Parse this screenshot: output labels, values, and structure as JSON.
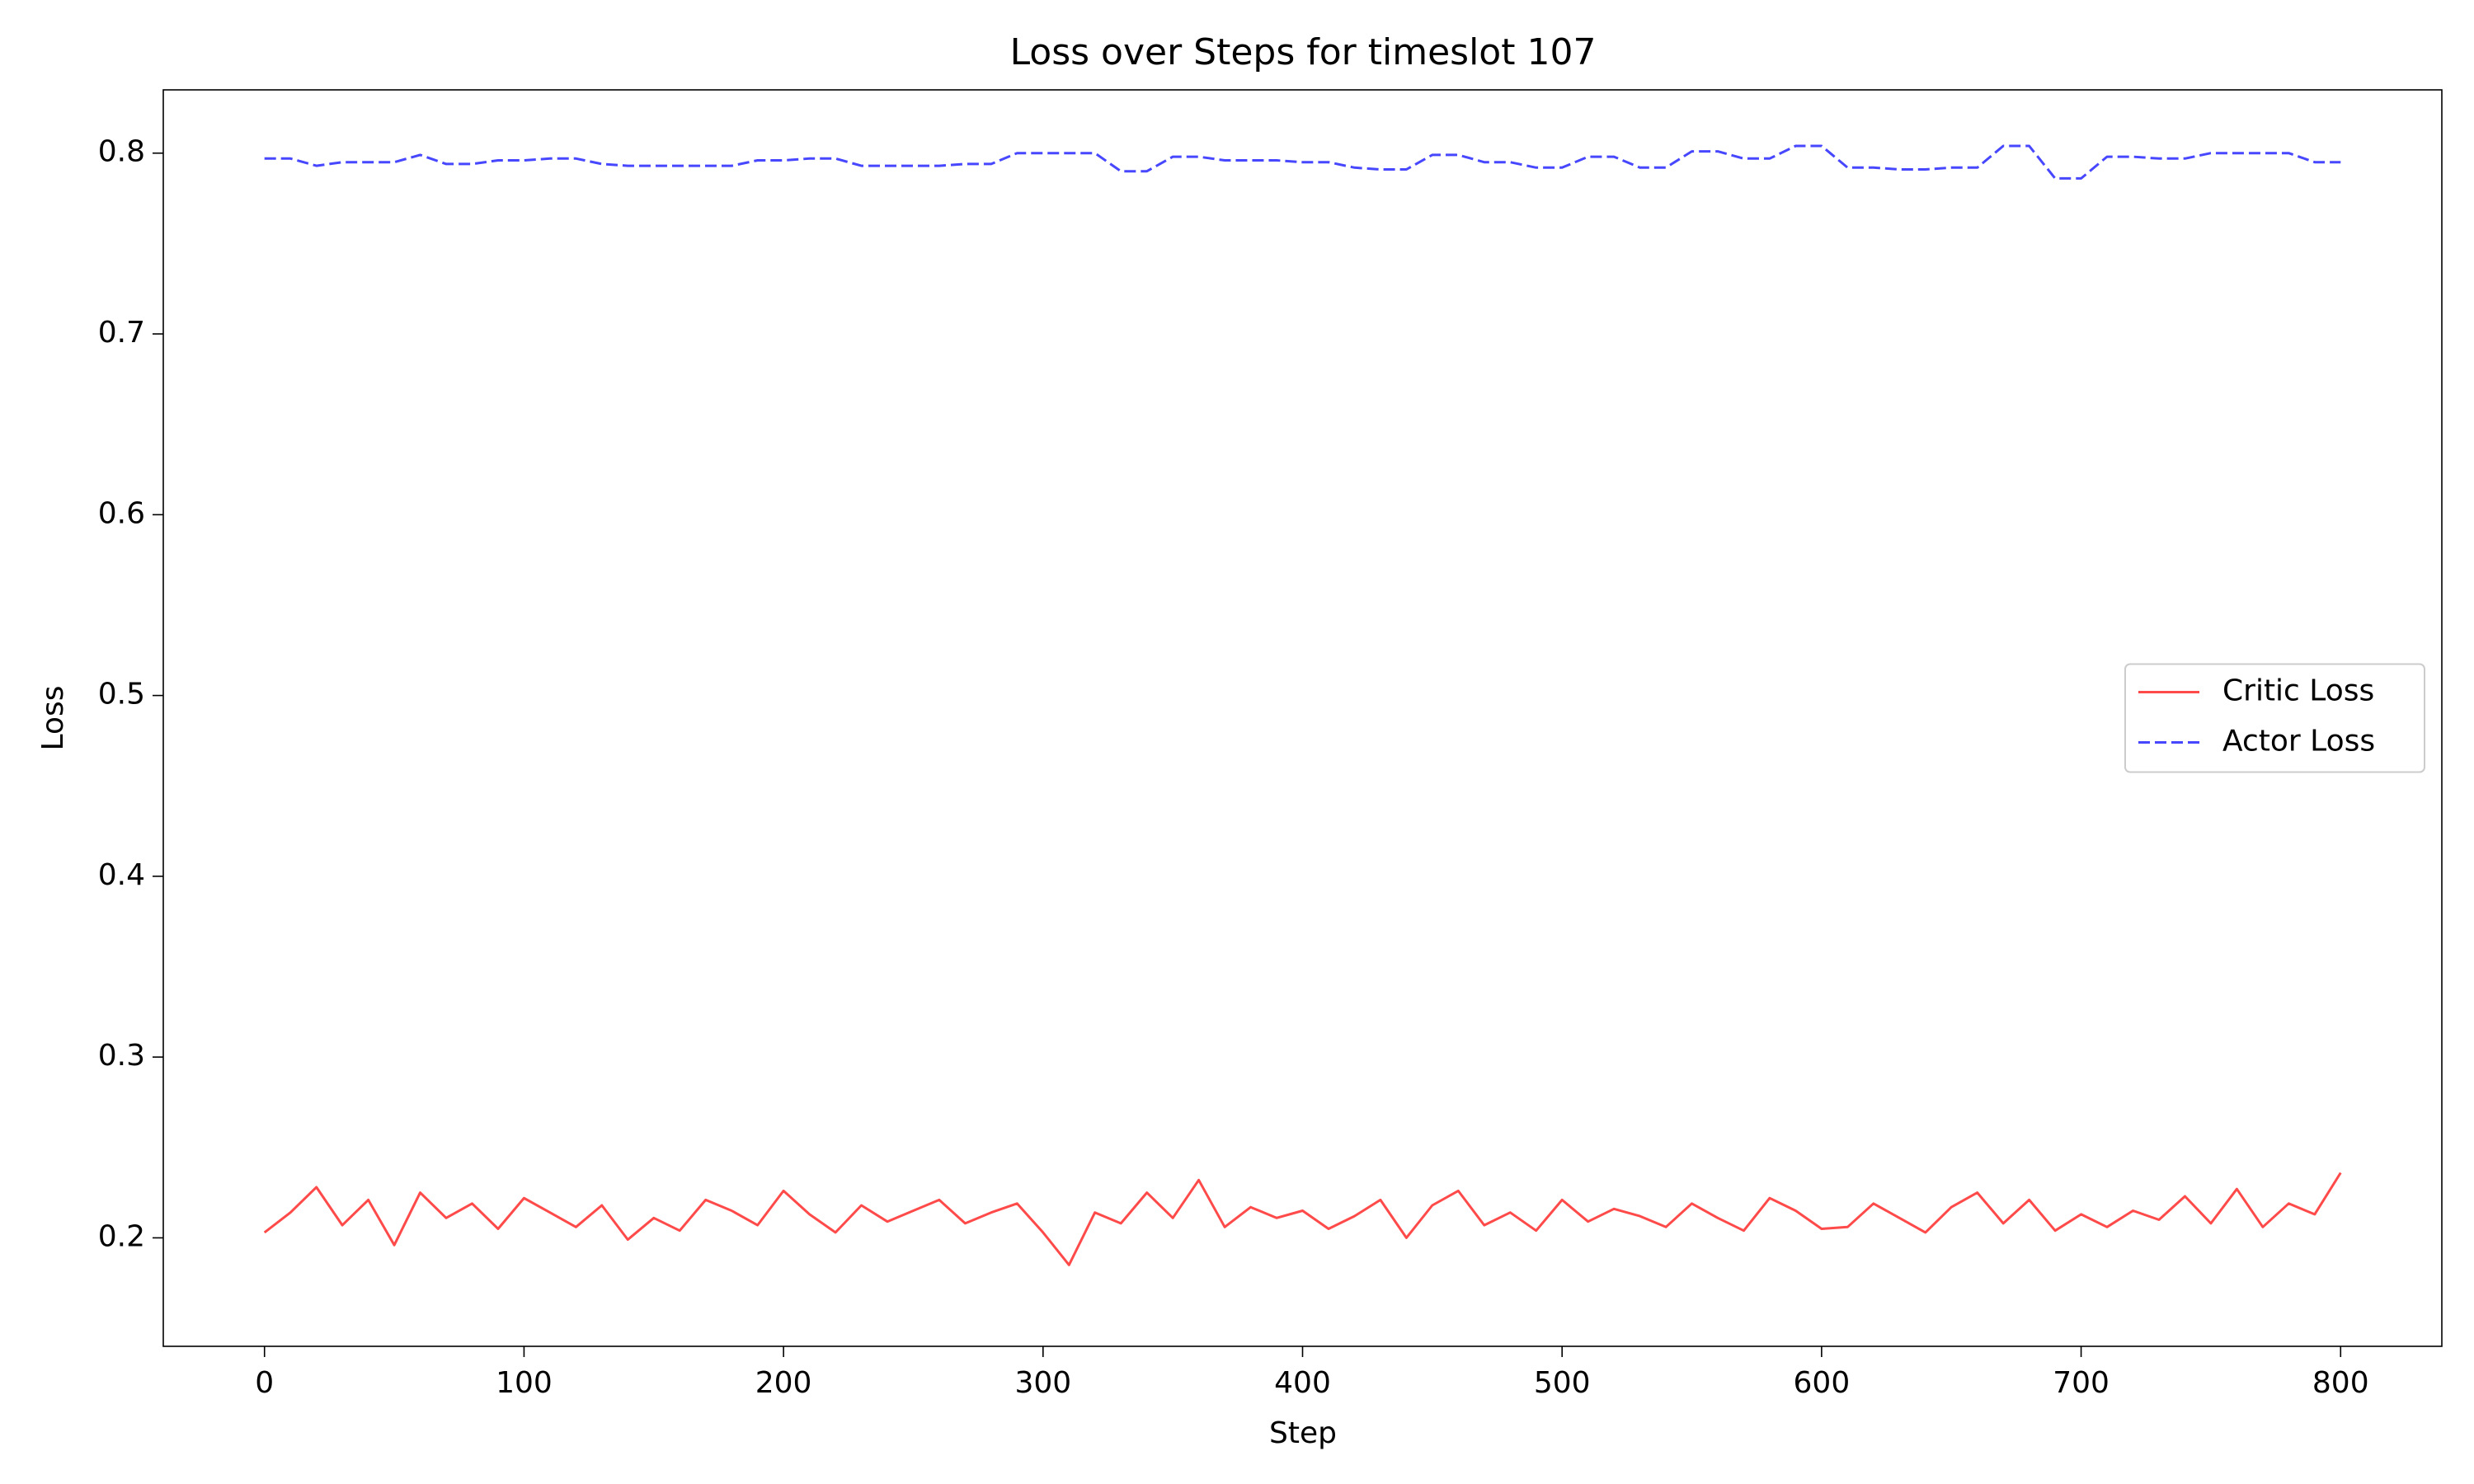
{
  "chart_data": {
    "type": "line",
    "title": "Loss over Steps for timeslot 107",
    "xlabel": "Step",
    "ylabel": "Loss",
    "x": [
      0,
      10,
      20,
      30,
      40,
      50,
      60,
      70,
      80,
      90,
      100,
      110,
      120,
      130,
      140,
      150,
      160,
      170,
      180,
      190,
      200,
      210,
      220,
      230,
      240,
      250,
      260,
      270,
      280,
      290,
      300,
      310,
      320,
      330,
      340,
      350,
      360,
      370,
      380,
      390,
      400,
      410,
      420,
      430,
      440,
      450,
      460,
      470,
      480,
      490,
      500,
      510,
      520,
      530,
      540,
      550,
      560,
      570,
      580,
      590,
      600,
      610,
      620,
      630,
      640,
      650,
      660,
      670,
      680,
      690,
      700,
      710,
      720,
      730,
      740,
      750,
      760,
      770,
      780,
      790,
      800
    ],
    "series": [
      {
        "name": "Critic Loss",
        "color": "#ff4a4a",
        "linestyle": "solid",
        "values": [
          0.203,
          0.214,
          0.228,
          0.207,
          0.221,
          0.196,
          0.225,
          0.211,
          0.219,
          0.205,
          0.222,
          0.214,
          0.206,
          0.218,
          0.199,
          0.211,
          0.204,
          0.221,
          0.215,
          0.207,
          0.226,
          0.213,
          0.203,
          0.218,
          0.209,
          0.215,
          0.221,
          0.208,
          0.214,
          0.219,
          0.203,
          0.185,
          0.214,
          0.208,
          0.225,
          0.211,
          0.232,
          0.206,
          0.217,
          0.211,
          0.215,
          0.205,
          0.212,
          0.221,
          0.2,
          0.218,
          0.226,
          0.207,
          0.214,
          0.204,
          0.221,
          0.209,
          0.216,
          0.212,
          0.206,
          0.219,
          0.211,
          0.204,
          0.222,
          0.215,
          0.205,
          0.206,
          0.219,
          0.211,
          0.203,
          0.217,
          0.225,
          0.208,
          0.221,
          0.204,
          0.213,
          0.206,
          0.215,
          0.21,
          0.223,
          0.208,
          0.227,
          0.206,
          0.219,
          0.213,
          0.236
        ]
      },
      {
        "name": "Actor Loss",
        "color": "#4747ff",
        "linestyle": "dashed",
        "values": [
          0.797,
          0.797,
          0.793,
          0.795,
          0.795,
          0.795,
          0.799,
          0.794,
          0.794,
          0.796,
          0.796,
          0.797,
          0.797,
          0.794,
          0.793,
          0.793,
          0.793,
          0.793,
          0.793,
          0.796,
          0.796,
          0.797,
          0.797,
          0.793,
          0.793,
          0.793,
          0.793,
          0.794,
          0.794,
          0.8,
          0.8,
          0.8,
          0.8,
          0.79,
          0.79,
          0.798,
          0.798,
          0.796,
          0.796,
          0.796,
          0.795,
          0.795,
          0.792,
          0.791,
          0.791,
          0.799,
          0.799,
          0.795,
          0.795,
          0.792,
          0.792,
          0.798,
          0.798,
          0.792,
          0.792,
          0.801,
          0.801,
          0.797,
          0.797,
          0.804,
          0.804,
          0.792,
          0.792,
          0.791,
          0.791,
          0.792,
          0.792,
          0.804,
          0.804,
          0.786,
          0.786,
          0.798,
          0.798,
          0.797,
          0.797,
          0.8,
          0.8,
          0.8,
          0.8,
          0.795,
          0.795
        ]
      }
    ],
    "xlim": [
      -39,
      839
    ],
    "xticks": [
      0,
      100,
      200,
      300,
      400,
      500,
      600,
      700,
      800
    ],
    "ylim": [
      0.14,
      0.835
    ],
    "yticks": [
      0.2,
      0.3,
      0.4,
      0.5,
      0.6,
      0.7,
      0.8
    ],
    "grid": false,
    "legend": "center right"
  }
}
